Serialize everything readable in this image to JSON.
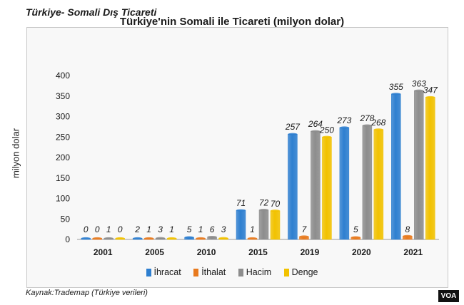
{
  "page_title": "Türkiye- Somali Dış Ticareti",
  "source": "Kaynak:Trademap (Türkiye verileri)",
  "logo_text": "VOA",
  "chart_data": {
    "type": "bar",
    "title": "Türkiye'nin Somali ile Ticareti (milyon dolar)",
    "xlabel": "",
    "ylabel": "milyon dolar",
    "ylim": [
      0,
      400
    ],
    "yticks": [
      0,
      50,
      100,
      150,
      200,
      250,
      300,
      350,
      400
    ],
    "categories": [
      "2001",
      "2005",
      "2010",
      "2015",
      "2019",
      "2020",
      "2021"
    ],
    "series": [
      {
        "name": "İhracat",
        "color": "#2e7fd0",
        "values": [
          0,
          2,
          5,
          71,
          257,
          273,
          355
        ]
      },
      {
        "name": "İthalat",
        "color": "#e87a1e",
        "values": [
          0,
          1,
          1,
          1,
          7,
          5,
          8
        ]
      },
      {
        "name": "Hacim",
        "color": "#8d8d8d",
        "values": [
          1,
          3,
          6,
          72,
          264,
          278,
          363
        ]
      },
      {
        "name": "Denge",
        "color": "#f2c200",
        "values": [
          0,
          1,
          3,
          70,
          250,
          268,
          347
        ]
      }
    ],
    "grid": false,
    "legend_position": "bottom"
  }
}
